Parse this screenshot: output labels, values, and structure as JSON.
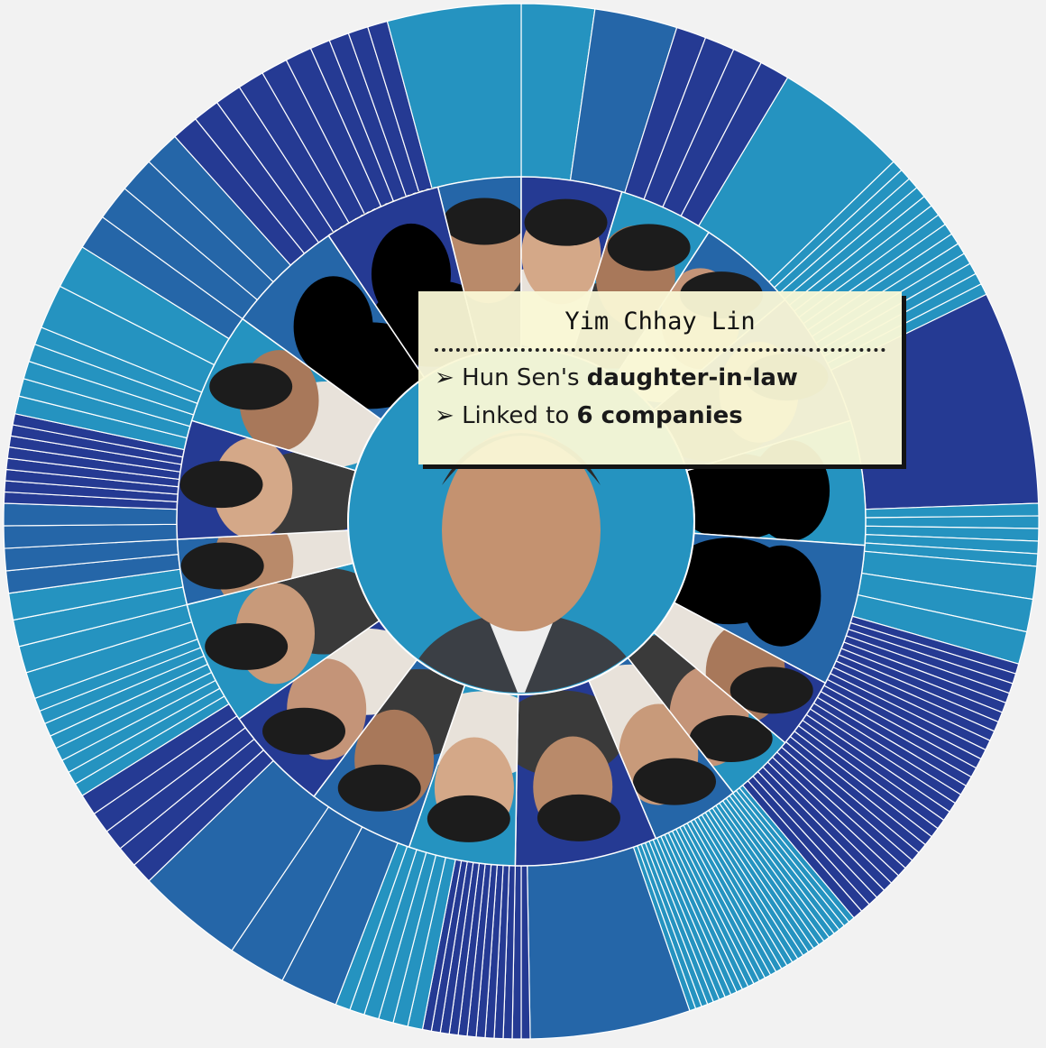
{
  "colors": {
    "background": "#f2f2f2",
    "light_blue": "#2593c0",
    "medium_blue": "#2566a8",
    "dark_blue": "#253a93",
    "divider": "#ffffff",
    "silhouette": "#000000",
    "tooltip_bg": "#faf8d6"
  },
  "center": {
    "photo": "person-portrait-icon"
  },
  "family_members": [
    {
      "photo": "person-portrait-icon",
      "highlighted": true
    },
    {
      "photo": "person-portrait-icon"
    },
    {
      "photo": "person-portrait-icon"
    },
    {
      "photo": "person-portrait-icon"
    },
    {
      "photo": "person-portrait-icon"
    },
    {
      "photo": "person-portrait-icon"
    },
    {
      "photo": "silhouette-icon"
    },
    {
      "photo": "silhouette-icon"
    },
    {
      "photo": "person-portrait-icon"
    },
    {
      "photo": "person-portrait-icon"
    },
    {
      "photo": "person-portrait-icon"
    },
    {
      "photo": "person-portrait-icon"
    },
    {
      "photo": "person-portrait-icon"
    },
    {
      "photo": "person-portrait-icon"
    },
    {
      "photo": "person-portrait-icon"
    },
    {
      "photo": "person-portrait-icon"
    },
    {
      "photo": "person-portrait-icon"
    },
    {
      "photo": "person-portrait-icon"
    },
    {
      "photo": "person-portrait-icon"
    },
    {
      "photo": "silhouette-icon"
    },
    {
      "photo": "silhouette-icon"
    }
  ],
  "tooltip": {
    "name": "Yim Chhay Lin",
    "bullet": "➢",
    "relation_prefix": "Hun Sen's ",
    "relation": "daughter-in-law",
    "companies_prefix": "Linked to ",
    "companies": "6 companies"
  }
}
